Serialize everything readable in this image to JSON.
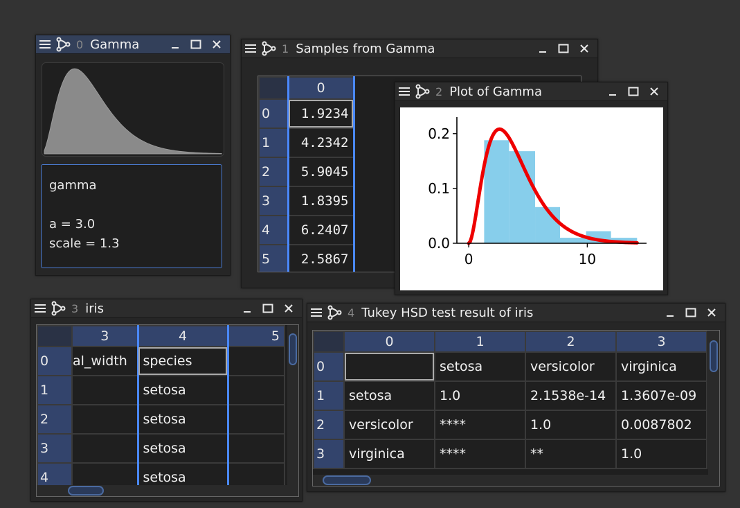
{
  "windows": {
    "gamma": {
      "index": "0",
      "title": "Gamma",
      "text_lines": [
        "gamma",
        "",
        "a = 3.0",
        "scale = 1.3"
      ]
    },
    "samples": {
      "index": "1",
      "title": "Samples from Gamma",
      "col_header": "0",
      "rows": [
        {
          "label": "0",
          "value": "1.9234"
        },
        {
          "label": "1",
          "value": "4.2342"
        },
        {
          "label": "2",
          "value": "5.9045"
        },
        {
          "label": "3",
          "value": "1.8395"
        },
        {
          "label": "4",
          "value": "6.2407"
        },
        {
          "label": "5",
          "value": "2.5867"
        }
      ]
    },
    "plot": {
      "index": "2",
      "title": "Plot of Gamma"
    },
    "iris": {
      "index": "3",
      "title": "iris",
      "columns": [
        "3",
        "4",
        "5"
      ],
      "rows": [
        {
          "label": "0",
          "cells": [
            "al_width",
            "species",
            ""
          ]
        },
        {
          "label": "1",
          "cells": [
            "",
            "setosa",
            ""
          ]
        },
        {
          "label": "2",
          "cells": [
            "",
            "setosa",
            ""
          ]
        },
        {
          "label": "3",
          "cells": [
            "",
            "setosa",
            ""
          ]
        },
        {
          "label": "4",
          "cells": [
            "",
            "setosa",
            ""
          ]
        }
      ]
    },
    "tukey": {
      "index": "4",
      "title": "Tukey HSD test result of iris",
      "columns": [
        "0",
        "1",
        "2",
        "3"
      ],
      "rows": [
        {
          "label": "0",
          "cells": [
            "",
            "setosa",
            "versicolor",
            "virginica"
          ]
        },
        {
          "label": "1",
          "cells": [
            "setosa",
            "1.0",
            "2.1538e-14",
            "1.3607e-09"
          ]
        },
        {
          "label": "2",
          "cells": [
            "versicolor",
            "****",
            "1.0",
            "0.0087802"
          ]
        },
        {
          "label": "3",
          "cells": [
            "virginica",
            "****",
            "**",
            "1.0"
          ]
        }
      ]
    }
  },
  "chart_data": {
    "type": "bar",
    "title": "",
    "xlabel": "",
    "ylabel": "",
    "xlim": [
      -1,
      15
    ],
    "ylim": [
      0,
      0.22
    ],
    "xticks": [
      0,
      10
    ],
    "yticks": [
      0.0,
      0.1,
      0.2
    ],
    "ytick_labels": [
      "0.0",
      "0.1",
      "0.2"
    ],
    "xtick_labels": [
      "0",
      "10"
    ],
    "histogram": {
      "bin_edges": [
        1.3,
        3.4,
        5.6,
        7.7,
        9.9,
        12.0,
        14.2
      ],
      "density": [
        0.188,
        0.168,
        0.066,
        0.01,
        0.022,
        0.01
      ],
      "color": "#87ceeb"
    },
    "pdf": {
      "distribution": "gamma",
      "a": 3.0,
      "scale": 1.3,
      "x_range": [
        0,
        14.2
      ],
      "color": "#ee0000"
    }
  },
  "colors": {
    "accent": "#4a88ff",
    "header": "#33446c",
    "background": "#333333"
  }
}
